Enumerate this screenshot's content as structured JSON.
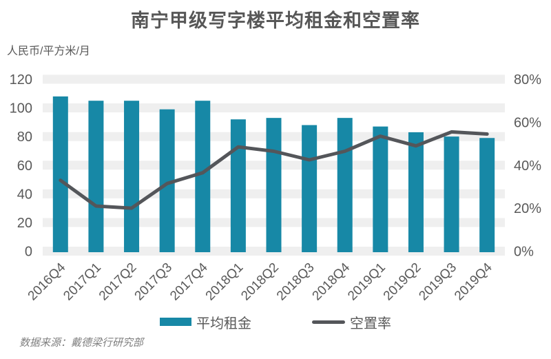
{
  "title": "南宁甲级写字楼平均租金和空置率",
  "left_axis_unit": "人民币/平方米/月",
  "legend": {
    "rent_label": "平均租金",
    "vacancy_label": "空置率"
  },
  "data_source": "数据来源：戴德梁行研究部",
  "colors": {
    "bar": "#1788A6",
    "line": "#54565A",
    "band": "#EFEFEF",
    "axis_text": "#595959",
    "title_text": "#575757",
    "source_text": "#7F7F7F"
  },
  "chart_data": {
    "type": "bar+line",
    "title": "南宁甲级写字楼平均租金和空置率",
    "categories": [
      "2016Q4",
      "2017Q1",
      "2017Q2",
      "2017Q3",
      "2017Q4",
      "2018Q1",
      "2018Q2",
      "2018Q3",
      "2018Q4",
      "2019Q1",
      "2019Q2",
      "2019Q3",
      "2019Q4"
    ],
    "series": [
      {
        "name": "平均租金",
        "type": "bar",
        "axis": "left",
        "unit": "人民币/平方米/月",
        "values": [
          108,
          105,
          105,
          99,
          105,
          92,
          93,
          88,
          93,
          87,
          83,
          80,
          79
        ]
      },
      {
        "name": "空置率",
        "type": "line",
        "axis": "right",
        "unit": "%",
        "values": [
          33,
          21,
          20,
          31.5,
          36.5,
          48.5,
          46.5,
          42.5,
          46.5,
          53.5,
          49,
          55.5,
          54.5
        ]
      }
    ],
    "left_axis": {
      "min": 0,
      "max": 120,
      "step": 20,
      "tick_labels": [
        "0",
        "20",
        "40",
        "60",
        "80",
        "100",
        "120"
      ]
    },
    "right_axis": {
      "min": 0,
      "max": 80,
      "step": 20,
      "tick_labels": [
        "0%",
        "20%",
        "40%",
        "60%",
        "80%"
      ]
    },
    "grid": "thick horizontal light-gray bands at each left-axis tick",
    "legend_position": "bottom",
    "x_label_rotation": -45
  }
}
